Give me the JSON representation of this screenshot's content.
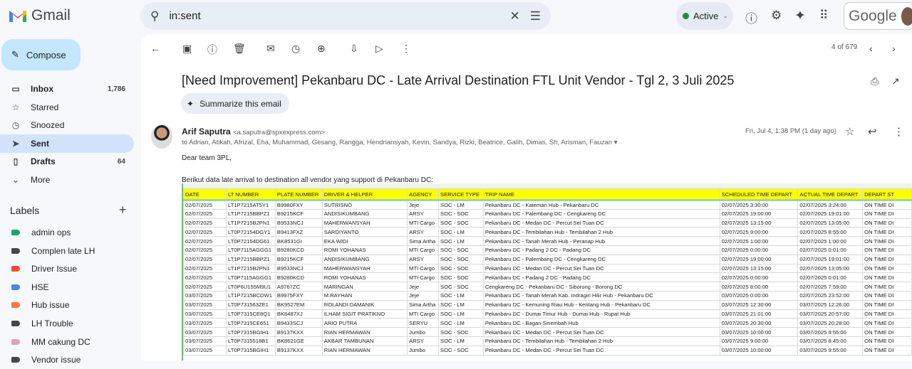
{
  "app": {
    "name": "Gmail"
  },
  "search": {
    "value": "in:sent"
  },
  "status": {
    "label": "Active",
    "color": "#1e8e3e"
  },
  "google": {
    "label": "Google"
  },
  "compose": {
    "label": "Compose"
  },
  "nav": [
    {
      "label": "Inbox",
      "count": "1,786",
      "icon": "inbox-icon",
      "glyph": "▭"
    },
    {
      "label": "Starred",
      "count": "",
      "icon": "star-icon",
      "glyph": "☆"
    },
    {
      "label": "Snoozed",
      "count": "",
      "icon": "clock-icon",
      "glyph": "◷"
    },
    {
      "label": "Sent",
      "count": "",
      "icon": "send-icon",
      "glyph": "➤"
    },
    {
      "label": "Drafts",
      "count": "64",
      "icon": "draft-icon",
      "glyph": "▯"
    },
    {
      "label": "More",
      "count": "",
      "icon": "chevron-down-icon",
      "glyph": "⌄"
    }
  ],
  "labels_title": "Labels",
  "labels": [
    {
      "label": "admin ops",
      "color": "#16a765"
    },
    {
      "label": "Complen late LH",
      "color": "#444746"
    },
    {
      "label": "Driver Issue",
      "color": "#fb4c2f"
    },
    {
      "label": "HSE",
      "color": "#4a86e8"
    },
    {
      "label": "Hub issue",
      "color": "#ff7537"
    },
    {
      "label": "LH Trouble",
      "color": "#444746"
    },
    {
      "label": "MM cakung DC",
      "color": "#d5a6bd"
    },
    {
      "label": "Vendor issue",
      "color": "#444746"
    }
  ],
  "pager": {
    "text": "4 of 679"
  },
  "email": {
    "subject": "[Need Improvement] Pekanbaru DC - Late Arrival Destination FTL Unit Vendor - Tgl 2, 3 Juli 2025",
    "summarize": "Summarize this email",
    "sender_name": "Arif Saputra",
    "sender_email": "<a.saputra@spxexpress.com>",
    "recipients": "to Adrian, Atikah, Afrizal, Eha, Muhammad, Gesang, Rangga, Hendriansyah, Kevin, Sandya, Rizki, Beatrice, Galih, Dimas, Sh, Arisman, Fauzan",
    "date": "Fri, Jul 4, 1:38 PM (1 day ago)",
    "greeting": "Dear team 3PL,",
    "intro": "Berikut data late arrival to destination all vendor yang support di Pekanbaru DC:"
  },
  "table": {
    "header_color": "#ffff00",
    "columns": [
      "DATE",
      "LT NUMBER",
      "PLATE NUMBER",
      "DRIVER & HELPER",
      "AGENCY",
      "SERVICE TYPE",
      "TRIP NAME",
      "SCHEDULED TIME DEPART",
      "ACTUAL TIME DEPART",
      "DEPART ST"
    ],
    "rows": [
      [
        "02/07/2025",
        "LT1P7215AT5Y1",
        "B9980FXY",
        "SUTRISNO",
        "Jeje",
        "SOC - LM",
        "Pekanbaru DC - Kateman Hub - Pekanbaru DC",
        "02/07/2025 3:30:00",
        "02/07/2025 3:24:00",
        "ON TIME DI"
      ],
      [
        "02/07/2025",
        "LT1P7215BBPZ1",
        "B9215KCF",
        "ANDISIKUMBANG",
        "ARSY",
        "SOC - SOC",
        "Pekanbaru DC - Palembang DC - Cengkareng DC",
        "02/07/2025 19:00:00",
        "02/07/2025 19:01:00",
        "ON TIME DI"
      ],
      [
        "02/07/2025",
        "LT1P7215B2PN1",
        "B9533NCJ",
        "MAHERWANSYAH",
        "MTI Cargo",
        "SOC - SOC",
        "Pekanbaru DC - Medan DC - Percut Sei Tuan DC",
        "02/07/2025 13:15:00",
        "02/07/2025 13:05:00",
        "ON TIME DI"
      ],
      [
        "02/07/2025",
        "LT0P72154DGY1",
        "B9413FXZ",
        "SARDIYANTO",
        "ARSY",
        "SOC - LM",
        "Pekanbaru DC - Tembilahan Hub - Tembilahan 2 Hub",
        "02/07/2025 9:00:00",
        "02/07/2025 8:55:00",
        "ON TIME DI"
      ],
      [
        "02/07/2025",
        "LT0P72154DG61",
        "BK8531GI",
        "EKA WIDI",
        "Sima Artha",
        "SOC - LM",
        "Pekanbaru DC - Tanah Merah Hub - Peranap Hub",
        "02/07/2025 1:00:00",
        "02/07/2025 1:00:00",
        "ON TIME DI"
      ],
      [
        "02/07/2025",
        "LT0P7115AGGG1",
        "B9280KCD",
        "ROMI YOHANAS",
        "MTI Cargo",
        "SOC - SOC",
        "Pekanbaru DC - Padang 2 DC - Padang DC",
        "02/07/2025 0:00:00",
        "02/07/2025 0:01:00",
        "ON TIME DI"
      ],
      [
        "02/07/2025",
        "LT1P7215BBPZ1",
        "B9215KCF",
        "ANDISIKUMBANG",
        "ARSY",
        "SOC - SOC",
        "Pekanbaru DC - Palembang DC - Cengkareng DC",
        "02/07/2025 19:00:00",
        "02/07/2025 19:01:00",
        "ON TIME DI"
      ],
      [
        "02/07/2025",
        "LT1P7215B2PN1",
        "B9533NCJ",
        "MAHERWANSYAH",
        "MTI Cargo",
        "SOC - SOC",
        "Pekanbaru DC - Medan DC - Percut Sei Tuan DC",
        "02/07/2025 13:15:00",
        "02/07/2025 13:05:00",
        "ON TIME DI"
      ],
      [
        "02/07/2025",
        "LT0P7115AGGG1",
        "B9280KCD",
        "ROMI YOHANAS",
        "MTI Cargo",
        "SOC - SOC",
        "Pekanbaru DC - Padang 2 DC - Padang DC",
        "02/07/2025 0:00:00",
        "02/07/2025 0:01:00",
        "ON TIME DI"
      ],
      [
        "02/07/2025",
        "LT0P6U155M9U1",
        "A9767ZC",
        "MARINGAN",
        "Jeje",
        "SOC - SOC",
        "Cengkareng DC - Pekanbaru DC - Siborong - Borong DC",
        "02/07/2025 8:00:00",
        "02/07/2025 7:59:00",
        "ON TIME DI"
      ],
      [
        "03/07/2025",
        "LT1P7215BCDW1",
        "B9975FXY",
        "M.RAYHAN",
        "Jeje",
        "SOC - LM",
        "Pekanbaru DC - Tanah Merah Kab. Indragiri Hilir Hub - Pekanbaru DC",
        "03/07/2025 0:00:00",
        "02/07/2025 23:52:00",
        "ON TIME DI"
      ],
      [
        "03/07/2025",
        "LT0P731563ZE1",
        "BK9527EM",
        "ROLANDI DAMANIK",
        "Sima Artha",
        "SOC - LM",
        "Pekanbaru DC - Kemuning Riau Hub - Keritang Hub - Pekanbaru DC",
        "03/07/2025 12:30:00",
        "03/07/2025 12:26:00",
        "ON TIME DI"
      ],
      [
        "03/07/2025",
        "LT0P7315CE8Q1",
        "BK8487XJ",
        "ILHAM SIGIT PRATIKNO",
        "MTI Cargo",
        "SOC - LM",
        "Pekanbaru DC - Dumai Timur Hub - Dumai Hub - Rupat Hub",
        "03/07/2025 21:01:00",
        "03/07/2025 20:57:00",
        "ON TIME DI"
      ],
      [
        "03/07/2025",
        "LT0P7315CE651",
        "B9433SCJ",
        "ARIO PUTRA",
        "SERYU",
        "SOC - LM",
        "Pekanbaru DC - Bagan Sinembah Hub",
        "03/07/2025 20:30:00",
        "03/07/2025 20:28:00",
        "ON TIME DI"
      ],
      [
        "03/07/2025",
        "LT0P7315BGIH1",
        "B9137KXX",
        "RIAN HERMAWAN",
        "Jumbo",
        "SOC - SOC",
        "Pekanbaru DC - Medan DC - Percut Sei Tuan DC",
        "03/07/2025 10:00:00",
        "03/07/2025 9:55:00",
        "ON TIME DI"
      ],
      [
        "03/07/2025",
        "LT0P7315518B1",
        "BK8621GE",
        "AKBAR TAMBUNAN",
        "ARSY",
        "SOC - LM",
        "Pekanbaru DC - Tembilahan Hub - Tembilahan 2 Hub",
        "03/07/2025 9:00:00",
        "03/07/2025 8:45:00",
        "ON TIME DI"
      ],
      [
        "03/07/2025",
        "LT0P7315BGIH1",
        "B9137KXX",
        "RIAN HERMAWAN",
        "Jumbo",
        "SOC - SOC",
        "Pekanbaru DC - Medan DC - Percut Sei Tuan DC",
        "03/07/2025 10:00:00",
        "03/07/2025 9:55:00",
        "ON TIME DI"
      ]
    ]
  }
}
